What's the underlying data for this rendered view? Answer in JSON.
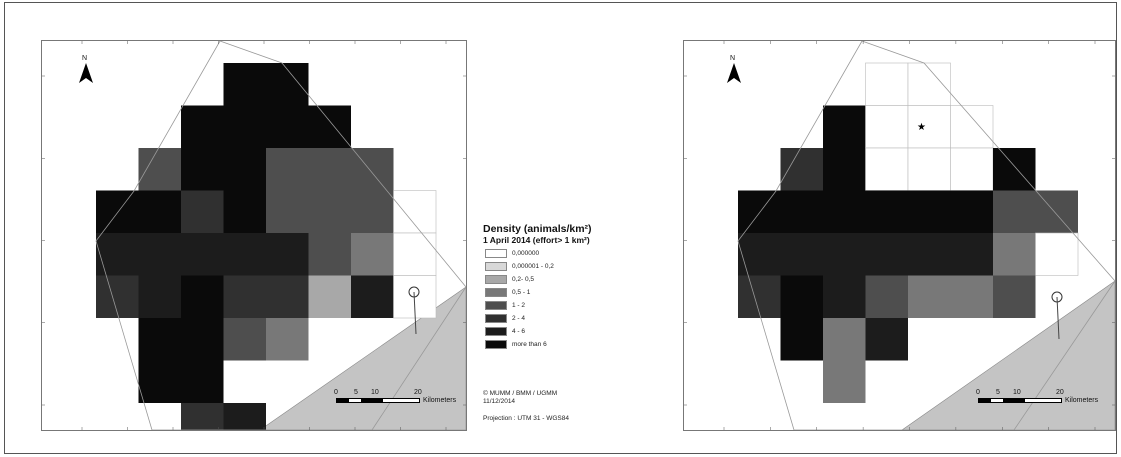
{
  "legend": {
    "title": "Density (animals/km²)",
    "subtitle": "1 April 2014 (effort> 1 km²)",
    "classes": [
      {
        "label": "0,000000",
        "color": "#ffffff"
      },
      {
        "label": "0,000001 - 0,2",
        "color": "#d8d8d8"
      },
      {
        "label": "0,2- 0,5",
        "color": "#a8a8a8"
      },
      {
        "label": "0,5 - 1",
        "color": "#787878"
      },
      {
        "label": "1 - 2",
        "color": "#4e4e4e"
      },
      {
        "label": "2 - 4",
        "color": "#303030"
      },
      {
        "label": "4 - 6",
        "color": "#1c1c1c"
      },
      {
        "label": "more than 6",
        "color": "#0a0a0a"
      }
    ]
  },
  "credits": {
    "line1": "© MUMM / BMM / UGMM",
    "line2": "11/12/2014",
    "projection": "Projection : UTM 31 - WGS84"
  },
  "north_label": "N",
  "scalebar": {
    "ticks": [
      "0",
      "5",
      "10",
      "20"
    ],
    "unit": "Kilometers"
  },
  "colors": {
    "land": "#c4c4c4",
    "frame": "#555555",
    "grid_line": "#bbbbbb"
  },
  "icons": [
    "north-arrow-icon",
    "star-icon",
    "buoy-icon"
  ]
}
